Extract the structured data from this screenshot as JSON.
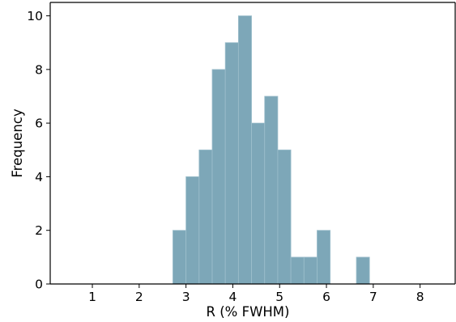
{
  "chart_data": {
    "type": "bar",
    "subtype": "histogram",
    "xlabel": "R (% FWHM)",
    "ylabel": "Frequency",
    "xlim": [
      0.1,
      8.75
    ],
    "ylim": [
      0,
      10.5
    ],
    "xticks": [
      1,
      2,
      3,
      4,
      5,
      6,
      7,
      8
    ],
    "yticks": [
      0,
      2,
      4,
      6,
      8,
      10
    ],
    "grid": false,
    "legend": "none",
    "bar_color": "#7da7b8",
    "bar_edge_color": "#9dbfcc",
    "bins": [
      {
        "x0": 2.72,
        "x1": 3.0,
        "count": 2
      },
      {
        "x0": 3.0,
        "x1": 3.28,
        "count": 4
      },
      {
        "x0": 3.28,
        "x1": 3.56,
        "count": 5
      },
      {
        "x0": 3.56,
        "x1": 3.84,
        "count": 8
      },
      {
        "x0": 3.84,
        "x1": 4.12,
        "count": 9
      },
      {
        "x0": 4.12,
        "x1": 4.4,
        "count": 10
      },
      {
        "x0": 4.4,
        "x1": 4.68,
        "count": 6
      },
      {
        "x0": 4.68,
        "x1": 4.96,
        "count": 7
      },
      {
        "x0": 4.96,
        "x1": 5.24,
        "count": 5
      },
      {
        "x0": 5.24,
        "x1": 5.52,
        "count": 1
      },
      {
        "x0": 5.52,
        "x1": 5.8,
        "count": 1
      },
      {
        "x0": 5.8,
        "x1": 6.08,
        "count": 2
      },
      {
        "x0": 6.08,
        "x1": 6.36,
        "count": 0
      },
      {
        "x0": 6.36,
        "x1": 6.64,
        "count": 0
      },
      {
        "x0": 6.64,
        "x1": 6.92,
        "count": 1
      }
    ]
  }
}
